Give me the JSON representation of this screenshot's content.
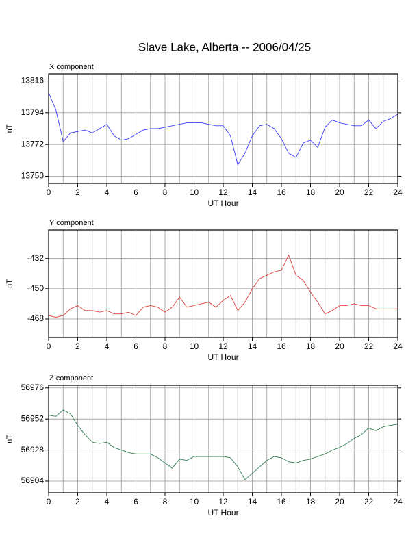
{
  "title": "Slave Lake, Alberta -- 2006/04/25",
  "chart_data": [
    {
      "type": "line",
      "title": "X component",
      "xlabel": "UT Hour",
      "ylabel": "nT",
      "xlim": [
        0,
        24
      ],
      "xticks": [
        0,
        2,
        4,
        6,
        8,
        10,
        12,
        14,
        16,
        18,
        20,
        22,
        24
      ],
      "xgrid": [
        1,
        3,
        5,
        7,
        9,
        11,
        13,
        15,
        17,
        19,
        21,
        23
      ],
      "ylim": [
        13745,
        13821
      ],
      "yticks": [
        13750,
        13772,
        13794,
        13816
      ],
      "grid": true,
      "x": [
        0,
        0.5,
        1,
        1.5,
        2,
        2.5,
        3,
        3.5,
        4,
        4.5,
        5,
        5.5,
        6,
        6.5,
        7,
        7.5,
        8,
        8.5,
        9,
        9.5,
        10,
        10.5,
        11,
        11.5,
        12,
        12.5,
        13,
        13.5,
        14,
        14.5,
        15,
        15.5,
        16,
        16.5,
        17,
        17.5,
        18,
        18.5,
        19,
        19.5,
        20,
        20.5,
        21,
        21.5,
        22,
        22.5,
        23,
        23.5,
        24
      ],
      "series": [
        {
          "color": "#3a3aff",
          "values": [
            13808,
            13796,
            13774,
            13780,
            13781,
            13782,
            13780,
            13783,
            13786,
            13778,
            13775,
            13776,
            13779,
            13782,
            13783,
            13783,
            13784,
            13785,
            13786,
            13787,
            13787,
            13787,
            13786,
            13785,
            13785,
            13778,
            13758,
            13766,
            13778,
            13785,
            13786,
            13783,
            13776,
            13766,
            13763,
            13773,
            13775,
            13770,
            13784,
            13789,
            13787,
            13786,
            13785,
            13785,
            13789,
            13783,
            13788,
            13790,
            13793
          ]
        }
      ]
    },
    {
      "type": "line",
      "title": "Y component",
      "xlabel": "UT Hour",
      "ylabel": "nT",
      "xlim": [
        0,
        24
      ],
      "xticks": [
        0,
        2,
        4,
        6,
        8,
        10,
        12,
        14,
        16,
        18,
        20,
        22,
        24
      ],
      "xgrid": [
        1,
        3,
        5,
        7,
        9,
        11,
        13,
        15,
        17,
        19,
        21,
        23
      ],
      "ylim": [
        -479,
        -415
      ],
      "yticks": [
        -468,
        -450,
        -432
      ],
      "grid": true,
      "x": [
        0,
        0.5,
        1,
        1.5,
        2,
        2.5,
        3,
        3.5,
        4,
        4.5,
        5,
        5.5,
        6,
        6.5,
        7,
        7.5,
        8,
        8.5,
        9,
        9.5,
        10,
        10.5,
        11,
        11.5,
        12,
        12.5,
        13,
        13.5,
        14,
        14.5,
        15,
        15.5,
        16,
        16.5,
        17,
        17.5,
        18,
        18.5,
        19,
        19.5,
        20,
        20.5,
        21,
        21.5,
        22,
        22.5,
        23,
        23.5,
        24
      ],
      "series": [
        {
          "color": "#e03a3a",
          "values": [
            -466,
            -467,
            -466,
            -462,
            -460,
            -463,
            -463,
            -464,
            -463,
            -465,
            -465,
            -464,
            -466,
            -461,
            -460,
            -461,
            -464,
            -461,
            -455,
            -461,
            -460,
            -459,
            -458,
            -461,
            -457,
            -454,
            -463,
            -458,
            -450,
            -444,
            -442,
            -440,
            -439,
            -430,
            -442,
            -445,
            -452,
            -458,
            -465,
            -463,
            -460,
            -460,
            -459,
            -460,
            -460,
            -462,
            -462,
            -462,
            -462
          ]
        }
      ]
    },
    {
      "type": "line",
      "title": "Z component",
      "xlabel": "UT Hour",
      "ylabel": "nT",
      "xlim": [
        0,
        24
      ],
      "xticks": [
        0,
        2,
        4,
        6,
        8,
        10,
        12,
        14,
        16,
        18,
        20,
        22,
        24
      ],
      "xgrid": [
        1,
        3,
        5,
        7,
        9,
        11,
        13,
        15,
        17,
        19,
        21,
        23
      ],
      "ylim": [
        56895,
        56978
      ],
      "yticks": [
        56904,
        56928,
        56952,
        56976
      ],
      "grid": true,
      "x": [
        0,
        0.5,
        1,
        1.5,
        2,
        2.5,
        3,
        3.5,
        4,
        4.5,
        5,
        5.5,
        6,
        6.5,
        7,
        7.5,
        8,
        8.5,
        9,
        9.5,
        10,
        10.5,
        11,
        11.5,
        12,
        12.5,
        13,
        13.5,
        14,
        14.5,
        15,
        15.5,
        16,
        16.5,
        17,
        17.5,
        18,
        18.5,
        19,
        19.5,
        20,
        20.5,
        21,
        21.5,
        22,
        22.5,
        23,
        23.5,
        24
      ],
      "series": [
        {
          "color": "#2e7d4f",
          "values": [
            56955,
            56954,
            56959,
            56956,
            56947,
            56940,
            56934,
            56933,
            56934,
            56930,
            56928,
            56926,
            56925,
            56925,
            56925,
            56922,
            56918,
            56914,
            56921,
            56920,
            56923,
            56923,
            56923,
            56923,
            56923,
            56922,
            56915,
            56905,
            56910,
            56915,
            56920,
            56923,
            56922,
            56919,
            56918,
            56920,
            56921,
            56923,
            56925,
            56928,
            56930,
            56933,
            56937,
            56940,
            56945,
            56943,
            56946,
            56947,
            56948
          ]
        }
      ]
    }
  ]
}
